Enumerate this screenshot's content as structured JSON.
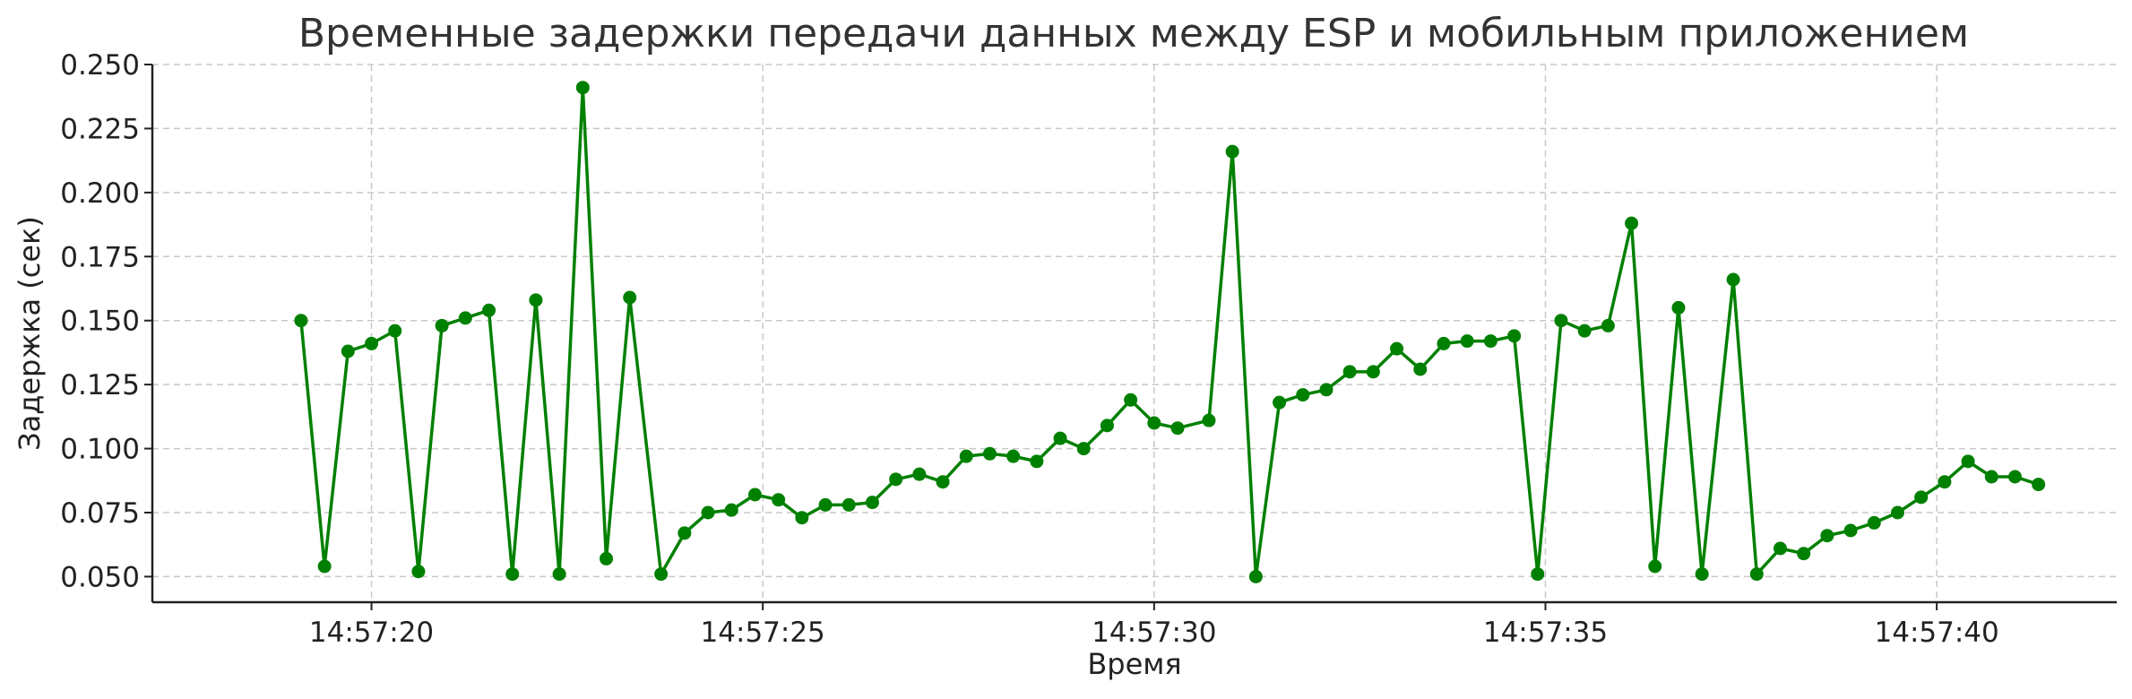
{
  "chart_data": {
    "type": "line",
    "title": "Временные задержки передачи данных между ESP и мобильным приложением",
    "xlabel": "Время",
    "ylabel": "Задержка (сек)",
    "ylim": [
      0.04,
      0.25
    ],
    "xlim": [
      "14:57:17.2",
      "14:57:42.3"
    ],
    "grid": true,
    "color": "#008000",
    "x_ticks": [
      "14:57:20",
      "14:57:25",
      "14:57:30",
      "14:57:35",
      "14:57:40"
    ],
    "y_ticks": [
      "0.050",
      "0.075",
      "0.100",
      "0.125",
      "0.150",
      "0.175",
      "0.200",
      "0.225",
      "0.250"
    ],
    "series": [
      {
        "x": [
          "14:57:19.1",
          "14:57:19.4",
          "14:57:19.7",
          "14:57:20.0",
          "14:57:20.3",
          "14:57:20.6",
          "14:57:20.9",
          "14:57:21.2",
          "14:57:21.5",
          "14:57:21.8",
          "14:57:22.1",
          "14:57:22.4",
          "14:57:22.7",
          "14:57:23.0",
          "14:57:23.3",
          "14:57:23.7",
          "14:57:24.0",
          "14:57:24.3",
          "14:57:24.6",
          "14:57:24.9",
          "14:57:25.2",
          "14:57:25.5",
          "14:57:25.8",
          "14:57:26.1",
          "14:57:26.4",
          "14:57:26.7",
          "14:57:27.0",
          "14:57:27.3",
          "14:57:27.6",
          "14:57:27.9",
          "14:57:28.2",
          "14:57:28.5",
          "14:57:28.8",
          "14:57:29.1",
          "14:57:29.4",
          "14:57:29.7",
          "14:57:30.0",
          "14:57:30.3",
          "14:57:30.7",
          "14:57:31.0",
          "14:57:31.3",
          "14:57:31.6",
          "14:57:31.9",
          "14:57:32.2",
          "14:57:32.5",
          "14:57:32.8",
          "14:57:33.1",
          "14:57:33.4",
          "14:57:33.7",
          "14:57:34.0",
          "14:57:34.3",
          "14:57:34.6",
          "14:57:34.9",
          "14:57:35.2",
          "14:57:35.5",
          "14:57:35.8",
          "14:57:36.1",
          "14:57:36.4",
          "14:57:36.7",
          "14:57:37.0",
          "14:57:37.4",
          "14:57:37.7",
          "14:57:38.0",
          "14:57:38.3",
          "14:57:38.6",
          "14:57:38.9",
          "14:57:39.2",
          "14:57:39.5",
          "14:57:39.8",
          "14:57:40.1",
          "14:57:40.4",
          "14:57:40.7",
          "14:57:41.0",
          "14:57:41.3"
        ],
        "values": [
          0.15,
          0.054,
          0.138,
          0.141,
          0.146,
          0.052,
          0.148,
          0.151,
          0.154,
          0.051,
          0.158,
          0.051,
          0.241,
          0.057,
          0.159,
          0.051,
          0.067,
          0.075,
          0.076,
          0.082,
          0.08,
          0.073,
          0.078,
          0.078,
          0.079,
          0.088,
          0.09,
          0.087,
          0.097,
          0.098,
          0.097,
          0.095,
          0.104,
          0.1,
          0.109,
          0.119,
          0.11,
          0.108,
          0.111,
          0.216,
          0.05,
          0.118,
          0.121,
          0.123,
          0.13,
          0.13,
          0.139,
          0.131,
          0.141,
          0.142,
          0.142,
          0.144,
          0.051,
          0.15,
          0.146,
          0.148,
          0.188,
          0.054,
          0.155,
          0.051,
          0.166,
          0.051,
          0.061,
          0.059,
          0.066,
          0.068,
          0.071,
          0.075,
          0.081,
          0.087,
          0.095,
          0.089,
          0.089,
          0.086
        ]
      }
    ]
  }
}
